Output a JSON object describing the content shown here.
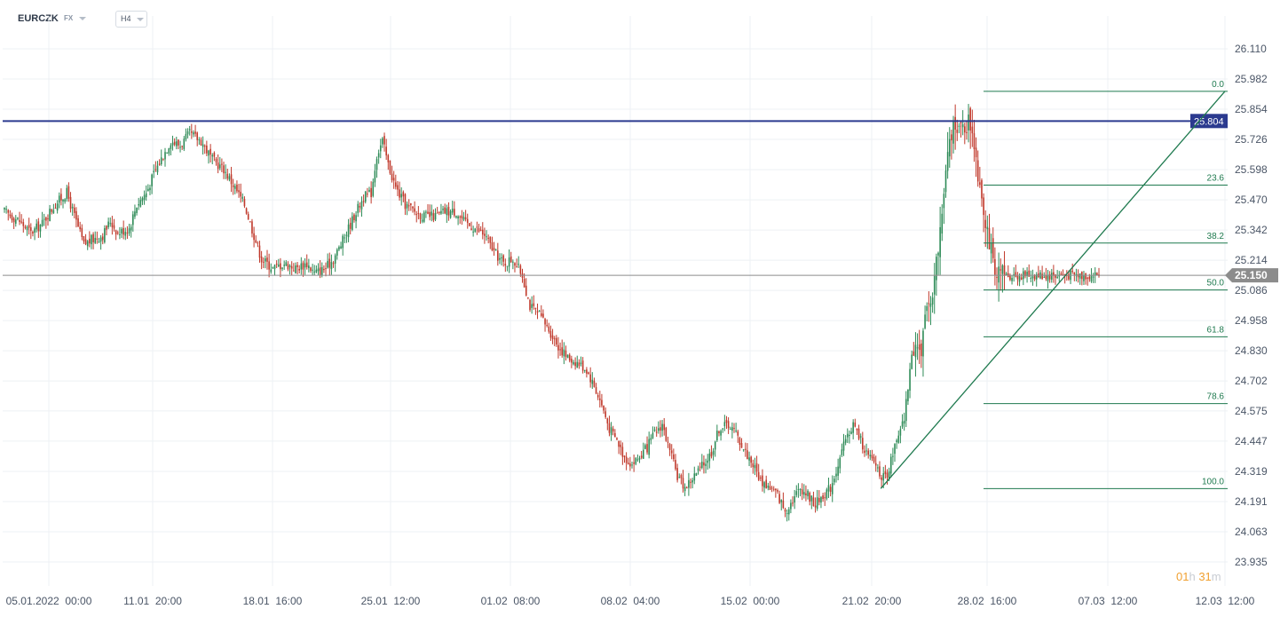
{
  "header": {
    "symbol": "EURCZK",
    "market": "FX",
    "timeframe": "H4"
  },
  "timer": {
    "hours": "01",
    "hours_unit": "h",
    "minutes": "31",
    "minutes_unit": "m"
  },
  "colors": {
    "bull": "#2e8b57",
    "bear": "#c0392b",
    "resistance": "#2b3a8f",
    "current_price": "#8c8c8c",
    "fib": "#1f7a4f",
    "grid": "#eef1f4",
    "axis_text": "#4a5566"
  },
  "chart_data": {
    "type": "candlestick",
    "ylim": [
      23.935,
      26.174
    ],
    "y_ticks": [
      "26.110",
      "25.982",
      "25.854",
      "25.726",
      "25.598",
      "25.470",
      "25.342",
      "25.214",
      "25.086",
      "24.958",
      "24.830",
      "24.702",
      "24.575",
      "24.447",
      "24.319",
      "24.191",
      "24.063",
      "23.935"
    ],
    "x_ticks": [
      "05.01.2022  00:00",
      "11.01  20:00",
      "18.01  16:00",
      "25.01  12:00",
      "01.02  08:00",
      "08.02  04:00",
      "15.02  00:00",
      "21.02  20:00",
      "28.02  16:00",
      "07.03  12:00",
      "12.03  12:00"
    ],
    "close_path": [
      [
        0,
        25.42
      ],
      [
        8,
        25.38
      ],
      [
        14,
        25.33
      ],
      [
        20,
        25.37
      ],
      [
        24,
        25.42
      ],
      [
        28,
        25.46
      ],
      [
        33,
        25.5
      ],
      [
        37,
        25.4
      ],
      [
        42,
        25.28
      ],
      [
        46,
        25.3
      ],
      [
        52,
        25.32
      ],
      [
        56,
        25.38
      ],
      [
        60,
        25.33
      ],
      [
        66,
        25.35
      ],
      [
        70,
        25.45
      ],
      [
        75,
        25.5
      ],
      [
        79,
        25.58
      ],
      [
        84,
        25.66
      ],
      [
        88,
        25.72
      ],
      [
        93,
        25.7
      ],
      [
        98,
        25.75
      ],
      [
        104,
        25.72
      ],
      [
        110,
        25.64
      ],
      [
        116,
        25.6
      ],
      [
        122,
        25.52
      ],
      [
        127,
        25.45
      ],
      [
        132,
        25.32
      ],
      [
        136,
        25.22
      ],
      [
        142,
        25.18
      ],
      [
        148,
        25.2
      ],
      [
        154,
        25.18
      ],
      [
        160,
        25.2
      ],
      [
        164,
        25.16
      ],
      [
        170,
        25.18
      ],
      [
        174,
        25.22
      ],
      [
        178,
        25.28
      ],
      [
        182,
        25.35
      ],
      [
        186,
        25.42
      ],
      [
        190,
        25.48
      ],
      [
        194,
        25.5
      ],
      [
        197,
        25.66
      ],
      [
        200,
        25.72
      ],
      [
        203,
        25.62
      ],
      [
        207,
        25.52
      ],
      [
        212,
        25.45
      ],
      [
        217,
        25.42
      ],
      [
        222,
        25.4
      ],
      [
        228,
        25.4
      ],
      [
        233,
        25.42
      ],
      [
        239,
        25.42
      ],
      [
        244,
        25.37
      ],
      [
        249,
        25.35
      ],
      [
        254,
        25.32
      ],
      [
        259,
        25.25
      ],
      [
        264,
        25.2
      ],
      [
        269,
        25.22
      ],
      [
        274,
        25.15
      ],
      [
        278,
        25.02
      ],
      [
        283,
        24.98
      ],
      [
        288,
        24.92
      ],
      [
        293,
        24.85
      ],
      [
        298,
        24.8
      ],
      [
        303,
        24.78
      ],
      [
        308,
        24.75
      ],
      [
        312,
        24.68
      ],
      [
        316,
        24.6
      ],
      [
        320,
        24.5
      ],
      [
        324,
        24.45
      ],
      [
        328,
        24.38
      ],
      [
        332,
        24.35
      ],
      [
        336,
        24.38
      ],
      [
        340,
        24.42
      ],
      [
        344,
        24.48
      ],
      [
        348,
        24.52
      ],
      [
        352,
        24.4
      ],
      [
        356,
        24.3
      ],
      [
        360,
        24.25
      ],
      [
        365,
        24.3
      ],
      [
        370,
        24.35
      ],
      [
        374,
        24.4
      ],
      [
        378,
        24.5
      ],
      [
        383,
        24.52
      ],
      [
        387,
        24.48
      ],
      [
        392,
        24.4
      ],
      [
        396,
        24.35
      ],
      [
        400,
        24.28
      ],
      [
        405,
        24.25
      ],
      [
        409,
        24.22
      ],
      [
        413,
        24.15
      ],
      [
        417,
        24.2
      ],
      [
        421,
        24.25
      ],
      [
        425,
        24.22
      ],
      [
        429,
        24.18
      ],
      [
        433,
        24.22
      ],
      [
        437,
        24.25
      ],
      [
        441,
        24.35
      ],
      [
        445,
        24.45
      ],
      [
        449,
        24.52
      ],
      [
        453,
        24.45
      ],
      [
        457,
        24.38
      ],
      [
        461,
        24.35
      ],
      [
        464,
        24.3
      ],
      [
        467,
        24.28
      ],
      [
        470,
        24.4
      ],
      [
        473,
        24.46
      ],
      [
        476,
        24.54
      ],
      [
        479,
        24.75
      ],
      [
        482,
        24.9
      ],
      [
        485,
        24.8
      ],
      [
        488,
        25.0
      ],
      [
        491,
        25.1
      ],
      [
        494,
        25.25
      ],
      [
        497,
        25.5
      ],
      [
        500,
        25.7
      ],
      [
        503,
        25.82
      ],
      [
        506,
        25.75
      ],
      [
        509,
        25.8
      ],
      [
        512,
        25.78
      ],
      [
        515,
        25.6
      ],
      [
        518,
        25.45
      ],
      [
        521,
        25.3
      ],
      [
        524,
        25.12
      ],
      [
        528,
        25.15
      ]
    ],
    "resistance_level": {
      "value": 25.804,
      "label": "25.804"
    },
    "current_price": {
      "value": 25.15,
      "label": "25.150"
    },
    "trendline": {
      "from": {
        "x_index": 465,
        "value": 24.246
      },
      "to": {
        "x_index": 579,
        "value": 25.93
      }
    },
    "fibonacci": {
      "high": 25.93,
      "low": 24.246,
      "levels": [
        {
          "label": "0.0",
          "ratio": 0.0
        },
        {
          "label": "23.6",
          "ratio": 0.236
        },
        {
          "label": "38.2",
          "ratio": 0.382
        },
        {
          "label": "50.0",
          "ratio": 0.5
        },
        {
          "label": "61.8",
          "ratio": 0.618
        },
        {
          "label": "78.6",
          "ratio": 0.786
        },
        {
          "label": "100.0",
          "ratio": 1.0
        }
      ]
    }
  }
}
